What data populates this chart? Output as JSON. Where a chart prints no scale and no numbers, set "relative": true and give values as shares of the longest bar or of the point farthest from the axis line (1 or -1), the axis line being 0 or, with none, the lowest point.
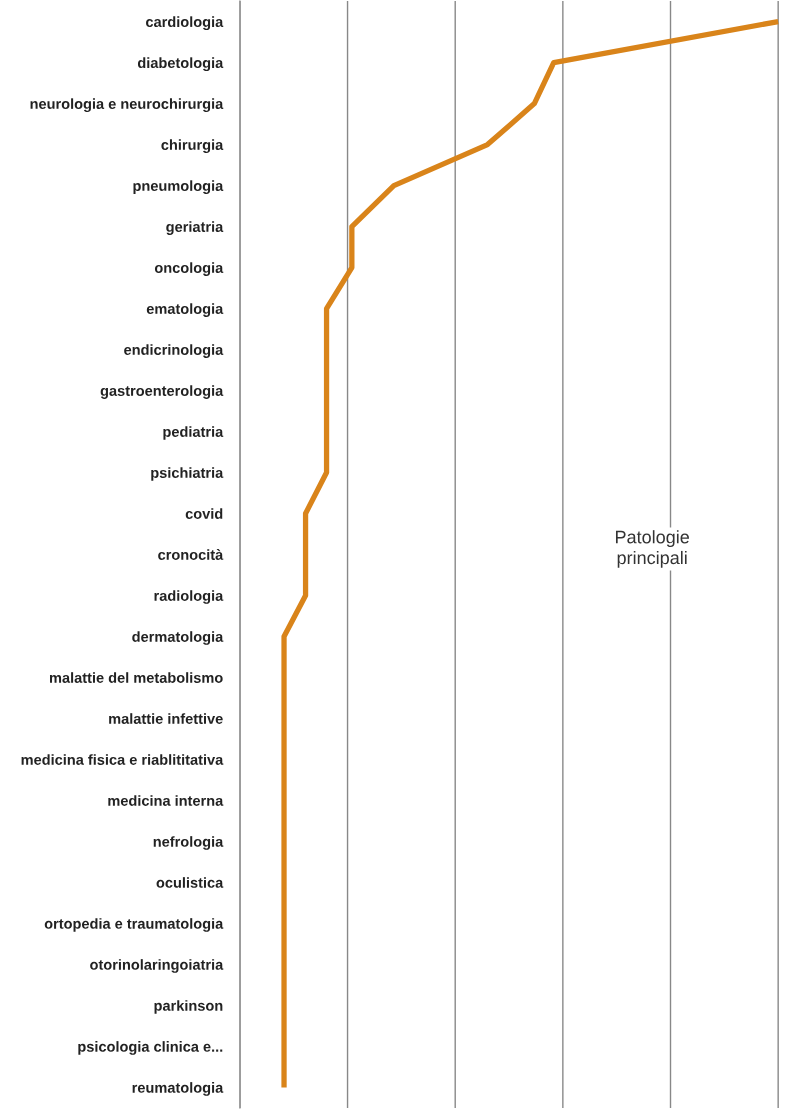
{
  "chart_data": {
    "type": "line",
    "relative": true,
    "orientation": "horizontal",
    "categories": [
      "cardiologia",
      "diabetologia",
      "neurologia e neurochirurgia",
      "chirurgia",
      "pneumologia",
      "geriatria",
      "oncologia",
      "ematologia",
      "endicrinologia",
      "gastroenterologia",
      "pediatria",
      "psichiatria",
      "covid",
      "cronocità",
      "radiologia",
      "dermatologia",
      "malattie del metabolismo",
      "malattie infettive",
      "medicina fisica e riablititativa",
      "medicina interna",
      "nefrologia",
      "oculistica",
      "ortopedia e traumatologia",
      "otorinolaringoiatria",
      "parkinson",
      "psicologia clinica e...",
      "reumatologia"
    ],
    "series": [
      {
        "color": "#d9841a",
        "values": [
          1,
          0.583,
          0.547,
          0.46,
          0.286,
          0.208,
          0.208,
          0.161,
          0.161,
          0.161,
          0.161,
          0.161,
          0.122,
          0.122,
          0.122,
          0.082,
          0.082,
          0.082,
          0.082,
          0.082,
          0.082,
          0.082,
          0.082,
          0.082,
          0.082,
          0.082,
          0.082
        ]
      }
    ],
    "annotations": [
      "Patologie\nprincipali"
    ],
    "grid": "x",
    "tick_labels": "y",
    "marker": "none",
    "line_style": "solid",
    "legend": false
  }
}
